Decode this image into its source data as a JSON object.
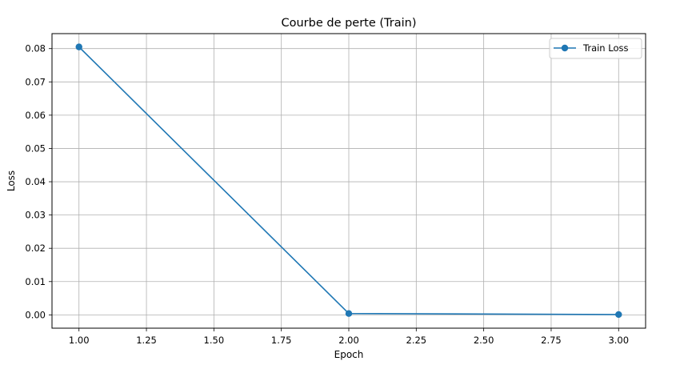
{
  "chart_data": {
    "type": "line",
    "title": "Courbe de perte (Train)",
    "xlabel": "Epoch",
    "ylabel": "Loss",
    "xlim": [
      0.9,
      3.1
    ],
    "ylim": [
      -0.004,
      0.0845
    ],
    "x_ticks": [
      1.0,
      1.25,
      1.5,
      1.75,
      2.0,
      2.25,
      2.5,
      2.75,
      3.0
    ],
    "x_tick_labels": [
      "1.00",
      "1.25",
      "1.50",
      "1.75",
      "2.00",
      "2.25",
      "2.50",
      "2.75",
      "3.00"
    ],
    "y_ticks": [
      0.0,
      0.01,
      0.02,
      0.03,
      0.04,
      0.05,
      0.06,
      0.07,
      0.08
    ],
    "y_tick_labels": [
      "0.00",
      "0.01",
      "0.02",
      "0.03",
      "0.04",
      "0.05",
      "0.06",
      "0.07",
      "0.08"
    ],
    "grid": true,
    "legend_position": "top-right",
    "series": [
      {
        "name": "Train Loss",
        "color": "#1f77b4",
        "marker": "circle",
        "x": [
          1.0,
          2.0,
          3.0
        ],
        "values": [
          0.0805,
          0.0004,
          0.0001
        ]
      }
    ]
  }
}
